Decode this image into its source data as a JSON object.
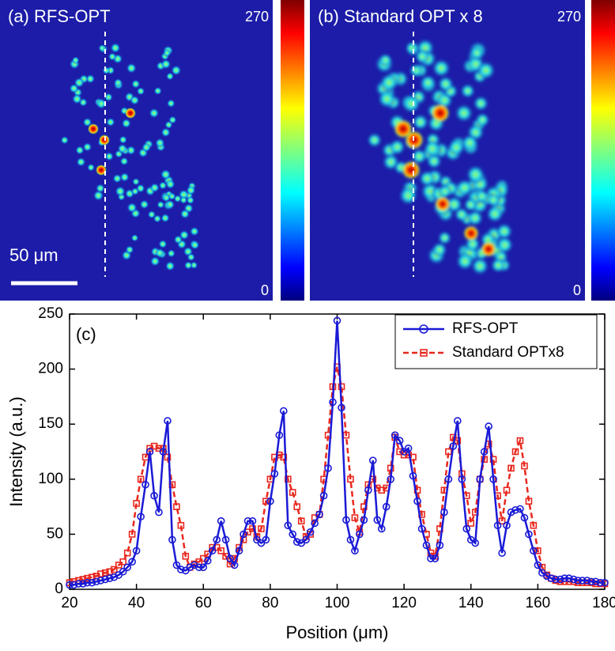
{
  "panels": [
    {
      "label": "(a) RFS-OPT",
      "scale_bar": "50 μm",
      "colorbar": {
        "max": 270,
        "min": 0
      }
    },
    {
      "label": "(b) Standard OPT x 8",
      "colorbar": {
        "max": 270,
        "min": 0
      }
    }
  ],
  "chart_data": {
    "type": "line",
    "label": "(c)",
    "x_label": "Position (μm)",
    "y_label": "Intensity (a.u.)",
    "xlim": [
      20,
      180
    ],
    "ylim": [
      0,
      250
    ],
    "xticks": [
      20,
      40,
      60,
      80,
      100,
      120,
      140,
      160,
      180
    ],
    "yticks": [
      0,
      50,
      100,
      150,
      200,
      250
    ],
    "legend": "upper right",
    "x": [
      20,
      21.3,
      22.7,
      24,
      25.3,
      26.7,
      28,
      29.3,
      30.7,
      32,
      33.3,
      34.7,
      36,
      37.3,
      38.7,
      40,
      41.3,
      42.7,
      44,
      45.3,
      46.7,
      48,
      49.3,
      50.7,
      52,
      53.3,
      54.7,
      56,
      57.3,
      58.7,
      60,
      61.3,
      62.7,
      64,
      65.3,
      66.7,
      68,
      69.3,
      70.7,
      72,
      73.3,
      74.7,
      76,
      77.3,
      78.7,
      80,
      81.3,
      82.7,
      84,
      85.3,
      86.7,
      88,
      89.3,
      90.7,
      92,
      93.3,
      94.7,
      96,
      97.3,
      98.7,
      100,
      101.3,
      102.7,
      104,
      105.3,
      106.7,
      108,
      109.3,
      110.7,
      112,
      113.3,
      114.7,
      116,
      117.3,
      118.7,
      120,
      121.3,
      122.7,
      124,
      125.3,
      126.7,
      128,
      129.3,
      130.7,
      132,
      133.3,
      134.7,
      136,
      137.3,
      138.7,
      140,
      141.3,
      142.7,
      144,
      145.3,
      146.7,
      148,
      149.3,
      150.7,
      152,
      153.3,
      154.7,
      156,
      157.3,
      158.7,
      160,
      161.3,
      162.7,
      164,
      165.3,
      166.7,
      168,
      169.3,
      170.7,
      172,
      173.3,
      174.7,
      176,
      177.3,
      178.7,
      180
    ],
    "series": [
      {
        "name": "RFS-OPT",
        "color": "#1a1ad6",
        "marker": "circle",
        "dashed": false,
        "values": [
          4,
          4,
          5,
          5,
          6,
          6,
          7,
          8,
          9,
          10,
          11,
          13,
          16,
          20,
          25,
          35,
          66,
          95,
          125,
          85,
          70,
          125,
          153,
          45,
          22,
          18,
          17,
          20,
          22,
          20,
          20,
          26,
          35,
          45,
          62,
          45,
          28,
          22,
          35,
          50,
          62,
          62,
          45,
          42,
          45,
          80,
          105,
          140,
          162,
          58,
          50,
          43,
          42,
          45,
          52,
          60,
          68,
          85,
          110,
          170,
          244,
          165,
          63,
          45,
          35,
          50,
          63,
          90,
          117,
          63,
          55,
          75,
          100,
          140,
          135,
          125,
          128,
          103,
          80,
          55,
          40,
          28,
          28,
          40,
          70,
          100,
          130,
          153,
          100,
          55,
          45,
          42,
          100,
          125,
          148,
          100,
          58,
          33,
          58,
          70,
          72,
          73,
          65,
          50,
          35,
          22,
          15,
          12,
          10,
          9,
          9,
          10,
          10,
          9,
          8,
          8,
          8,
          7,
          7,
          6,
          6
        ]
      },
      {
        "name": "Standard OPTx8",
        "color": "#e8281e",
        "marker": "square",
        "dashed": true,
        "values": [
          6,
          7,
          8,
          9,
          10,
          11,
          12,
          14,
          15,
          16,
          18,
          22,
          25,
          33,
          50,
          78,
          100,
          120,
          128,
          130,
          128,
          128,
          120,
          95,
          75,
          58,
          30,
          20,
          23,
          25,
          28,
          32,
          38,
          38,
          35,
          30,
          23,
          28,
          38,
          45,
          52,
          55,
          48,
          55,
          80,
          100,
          120,
          122,
          120,
          100,
          88,
          75,
          62,
          48,
          50,
          65,
          68,
          100,
          140,
          184,
          202,
          184,
          140,
          100,
          65,
          52,
          75,
          95,
          100,
          92,
          90,
          92,
          110,
          138,
          125,
          122,
          122,
          120,
          90,
          68,
          50,
          33,
          30,
          55,
          90,
          125,
          138,
          135,
          105,
          85,
          60,
          70,
          100,
          118,
          132,
          118,
          85,
          62,
          90,
          110,
          125,
          135,
          112,
          80,
          58,
          35,
          20,
          13,
          10,
          8,
          7,
          7,
          7,
          7,
          6,
          6,
          6,
          6,
          5,
          5,
          5
        ]
      }
    ]
  }
}
